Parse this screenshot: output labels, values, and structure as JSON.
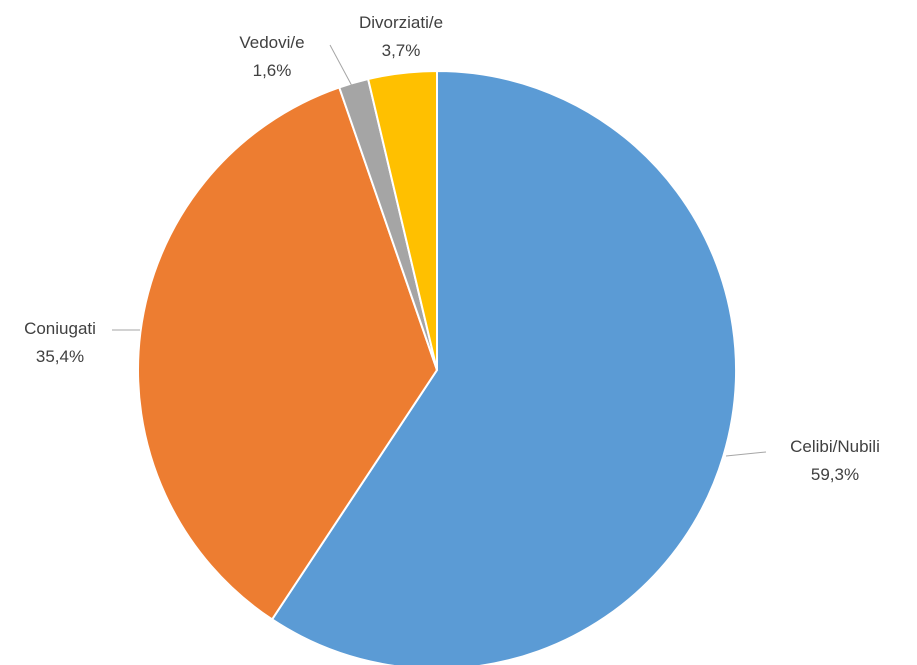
{
  "chart_data": {
    "type": "pie",
    "title": "",
    "start": "12 o'clock, clockwise",
    "legend": "none (labels beside slices)",
    "slices": [
      {
        "category": "Celibi/Nubili",
        "value": 59.3,
        "label": "59,3%",
        "color": "#5b9bd5"
      },
      {
        "category": "Coniugati",
        "value": 35.4,
        "label": "35,4%",
        "color": "#ed7d31"
      },
      {
        "category": "Vedovi/e",
        "value": 1.6,
        "label": "1,6%",
        "color": "#a5a5a5"
      },
      {
        "category": "Divorziati/e",
        "value": 3.7,
        "label": "3,7%",
        "color": "#ffc000"
      }
    ]
  }
}
